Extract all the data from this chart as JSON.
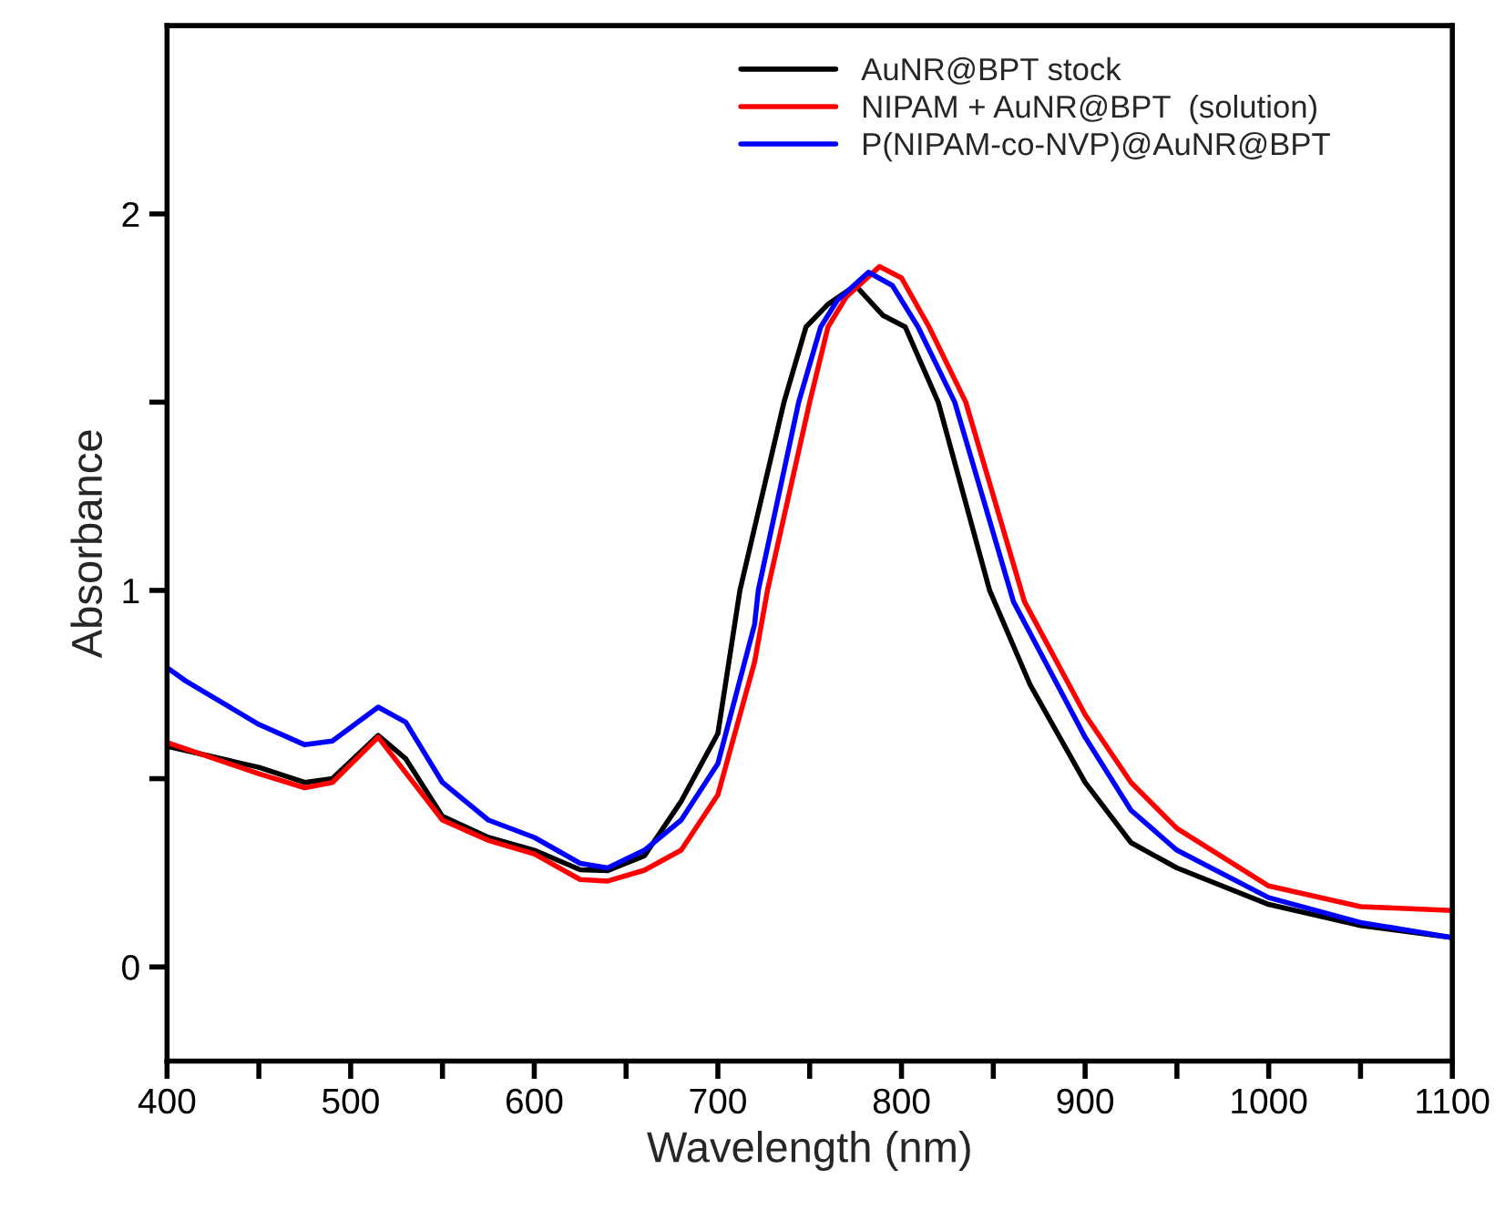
{
  "chart_data": {
    "type": "line",
    "xlabel": "Wavelength (nm)",
    "ylabel": "Absorbance",
    "xlim": [
      400,
      1100
    ],
    "ylim": [
      -0.25,
      2.5
    ],
    "xticks": [
      400,
      {
        "value": 450,
        "label": null
      },
      500,
      {
        "value": 550,
        "label": null
      },
      600,
      {
        "value": 650,
        "label": null
      },
      700,
      {
        "value": 750,
        "label": null
      },
      800,
      {
        "value": 850,
        "label": null
      },
      900,
      {
        "value": 950,
        "label": null
      },
      1000,
      {
        "value": 1050,
        "label": null
      },
      1100
    ],
    "yticks": [
      0,
      {
        "value": 0.5,
        "label": null
      },
      1,
      {
        "value": 1.5,
        "label": null
      },
      2
    ],
    "grid": false,
    "legend": "top right",
    "marker": "none",
    "line_style": "solid",
    "series": [
      {
        "name": "AuNR@BPT stock",
        "color": "#000000",
        "x": [
          400,
          450,
          475,
          490,
          515,
          530,
          550,
          575,
          600,
          625,
          640,
          660,
          680,
          700,
          712,
          736,
          748,
          760,
          775,
          790,
          802,
          820,
          848,
          870,
          900,
          925,
          950,
          1000,
          1050,
          1100
        ],
        "values": [
          0.586,
          0.53,
          0.49,
          0.5,
          0.615,
          0.553,
          0.4,
          0.344,
          0.31,
          0.258,
          0.256,
          0.295,
          0.44,
          0.62,
          1.0,
          1.5,
          1.7,
          1.76,
          1.81,
          1.73,
          1.7,
          1.5,
          1.0,
          0.75,
          0.49,
          0.33,
          0.263,
          0.166,
          0.11,
          0.078
        ]
      },
      {
        "name": "NIPAM + AuNR@BPT  (solution)",
        "color": "#ff0000",
        "x": [
          400,
          450,
          475,
          490,
          515,
          550,
          575,
          600,
          625,
          640,
          660,
          680,
          700,
          720,
          727,
          750,
          760,
          770,
          788,
          800,
          815,
          835,
          867,
          900,
          925,
          950,
          1000,
          1050,
          1100
        ],
        "values": [
          0.596,
          0.513,
          0.476,
          0.49,
          0.61,
          0.39,
          0.336,
          0.3,
          0.232,
          0.228,
          0.257,
          0.31,
          0.457,
          0.81,
          1.0,
          1.5,
          1.7,
          1.78,
          1.86,
          1.83,
          1.7,
          1.5,
          0.97,
          0.67,
          0.49,
          0.368,
          0.215,
          0.16,
          0.15
        ]
      },
      {
        "name": "P(NIPAM-co-NVP)@AuNR@BPT",
        "color": "#0000ff",
        "x": [
          400,
          410,
          450,
          475,
          490,
          515,
          530,
          550,
          575,
          600,
          625,
          640,
          660,
          680,
          700,
          720,
          722,
          744,
          756,
          765,
          782,
          795,
          809,
          829,
          861,
          900,
          925,
          950,
          1000,
          1050,
          1100
        ],
        "values": [
          0.795,
          0.76,
          0.644,
          0.59,
          0.6,
          0.69,
          0.65,
          0.49,
          0.39,
          0.344,
          0.275,
          0.263,
          0.31,
          0.39,
          0.54,
          0.91,
          1.0,
          1.5,
          1.7,
          1.77,
          1.845,
          1.81,
          1.7,
          1.5,
          0.97,
          0.61,
          0.416,
          0.31,
          0.184,
          0.118,
          0.078
        ]
      }
    ]
  }
}
